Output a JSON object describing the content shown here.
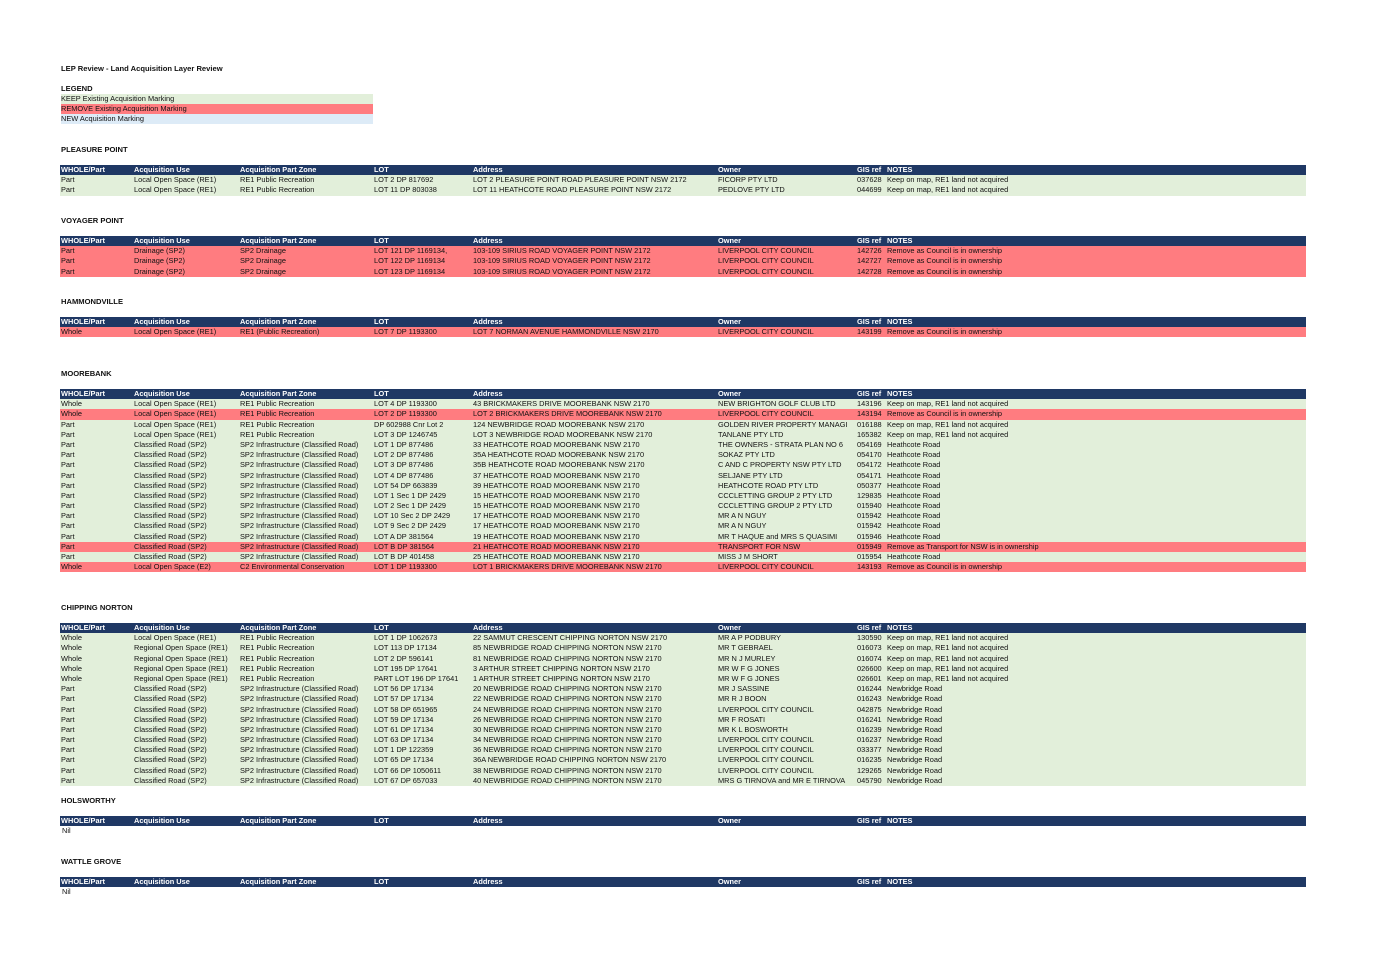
{
  "title": "LEP Review - Land Acquisition Layer Review",
  "legend": {
    "title": "LEGEND",
    "keep": "KEEP Existing Acquisition Marking",
    "remove": "REMOVE Existing Acquisition Marking",
    "new": "NEW Acquisition Marking"
  },
  "colors": {
    "keep": "#e2efda",
    "remove": "#ff7c80",
    "new": "#ddebf7",
    "header": "#1f3864"
  },
  "headers": [
    "WHOLE/Part",
    "Acquisition Use",
    "Acquisition Part Zone",
    "LOT",
    "Address",
    "Owner",
    "GIS ref",
    "NOTES"
  ],
  "sections": [
    {
      "name": "PLEASURE POINT",
      "rows": [
        {
          "status": "keep",
          "cells": [
            "Part",
            "Local Open Space (RE1)",
            "RE1 Public Recreation",
            "LOT 2 DP 817692",
            "LOT 2 PLEASURE POINT ROAD   PLEASURE POINT NSW 2172",
            "FICORP PTY LTD",
            "037628",
            "Keep on map, RE1 land not acquired"
          ]
        },
        {
          "status": "keep",
          "cells": [
            "Part",
            "Local Open Space (RE1)",
            "RE1 Public Recreation",
            "LOT 11 DP 803038",
            "LOT 11 HEATHCOTE ROAD   PLEASURE POINT NSW 2172",
            "PEDLOVE PTY LTD",
            "044699",
            "Keep on map, RE1 land not acquired"
          ]
        }
      ]
    },
    {
      "name": "VOYAGER POINT",
      "rows": [
        {
          "status": "remove",
          "cells": [
            "Part",
            "Drainage (SP2)",
            "SP2 Drainage",
            "LOT 121 DP 1169134,",
            "103-109 SIRIUS ROAD   VOYAGER POINT NSW 2172",
            "LIVERPOOL CITY COUNCIL",
            "142726",
            "Remove as Council is in ownership"
          ]
        },
        {
          "status": "remove",
          "cells": [
            "Part",
            "Drainage (SP2)",
            "SP2 Drainage",
            "LOT 122 DP 1169134",
            "103-109 SIRIUS ROAD   VOYAGER POINT NSW 2172",
            "LIVERPOOL CITY COUNCIL",
            "142727",
            "Remove as Council is in ownership"
          ]
        },
        {
          "status": "remove",
          "cells": [
            "Part",
            "Drainage (SP2)",
            "SP2 Drainage",
            "LOT 123 DP 1169134",
            "103-109 SIRIUS ROAD   VOYAGER POINT NSW 2172",
            "LIVERPOOL CITY COUNCIL",
            "142728",
            "Remove as Council is in ownership"
          ]
        }
      ]
    },
    {
      "name": "HAMMONDVILLE",
      "rows": [
        {
          "status": "remove",
          "cells": [
            "Whole",
            "Local Open Space (RE1)",
            "RE1 (Public Recreation)",
            "LOT 7 DP 1193300",
            "LOT 7 NORMAN AVENUE HAMMONDVILLE NSW 2170",
            "LIVERPOOL CITY COUNCIL",
            "143199",
            "Remove as Council is in ownership"
          ]
        }
      ]
    },
    {
      "name": "MOOREBANK",
      "rows": [
        {
          "status": "keep",
          "cells": [
            "Whole",
            "Local Open Space (RE1)",
            "RE1 Public Recreation",
            "LOT 4 DP 1193300",
            "43 BRICKMAKERS DRIVE   MOOREBANK NSW 2170",
            "NEW BRIGHTON GOLF CLUB LTD",
            "143196",
            "Keep on map, RE1 land not acquired"
          ]
        },
        {
          "status": "remove",
          "cells": [
            "Whole",
            "Local Open Space (RE1)",
            "RE1 Public Recreation",
            "LOT 2 DP 1193300",
            "LOT 2 BRICKMAKERS DRIVE   MOOREBANK NSW 2170",
            "LIVERPOOL CITY COUNCIL",
            "143194",
            "Remove as Council is in ownership"
          ]
        },
        {
          "status": "keep",
          "cells": [
            "Part",
            "Local Open Space (RE1)",
            "RE1 Public Recreation",
            "DP 602988 Cnr Lot 2",
            "124 NEWBRIDGE ROAD   MOOREBANK NSW 2170",
            "GOLDEN RIVER PROPERTY MANAGI",
            "016188",
            "Keep on map, RE1 land not acquired"
          ]
        },
        {
          "status": "keep",
          "cells": [
            "Part",
            "Local Open Space (RE1)",
            "RE1 Public Recreation",
            "LOT 3 DP 1246745",
            "LOT 3 NEWBRIDGE ROAD   MOOREBANK NSW 2170",
            "TANLANE PTY LTD",
            "165382",
            "Keep on map, RE1 land not acquired"
          ]
        },
        {
          "status": "keep",
          "cells": [
            "Part",
            "Classified Road (SP2)",
            "SP2 Infrastructure (Classified Road)",
            "LOT 1 DP 877486",
            "33 HEATHCOTE ROAD   MOOREBANK NSW 2170",
            "THE OWNERS - STRATA PLAN NO 6",
            "054169",
            "Heathcote Road"
          ]
        },
        {
          "status": "keep",
          "cells": [
            "Part",
            "Classified Road (SP2)",
            "SP2 Infrastructure (Classified Road)",
            "LOT 2 DP 877486",
            "35A HEATHCOTE ROAD   MOOREBANK NSW 2170",
            "SOKAZ PTY LTD",
            "054170",
            "Heathcote Road"
          ]
        },
        {
          "status": "keep",
          "cells": [
            "Part",
            "Classified Road (SP2)",
            "SP2 Infrastructure (Classified Road)",
            "LOT 3 DP 877486",
            "35B HEATHCOTE ROAD   MOOREBANK NSW 2170",
            "C AND C PROPERTY NSW PTY LTD",
            "054172",
            "Heathcote Road"
          ]
        },
        {
          "status": "keep",
          "cells": [
            "Part",
            "Classified Road (SP2)",
            "SP2 Infrastructure (Classified Road)",
            "LOT 4 DP 877486",
            "37 HEATHCOTE ROAD   MOOREBANK NSW 2170",
            "SELJANE PTY LTD",
            "054171",
            "Heathcote Road"
          ]
        },
        {
          "status": "keep",
          "cells": [
            "Part",
            "Classified Road (SP2)",
            "SP2 Infrastructure (Classified Road)",
            "LOT 54 DP 663839",
            "39 HEATHCOTE ROAD   MOOREBANK NSW 2170",
            "HEATHCOTE ROAD PTY LTD",
            "050377",
            "Heathcote Road"
          ]
        },
        {
          "status": "keep",
          "cells": [
            "Part",
            "Classified Road (SP2)",
            "SP2 Infrastructure (Classified Road)",
            "LOT 1 Sec 1 DP 2429",
            "15 HEATHCOTE ROAD   MOOREBANK NSW 2170",
            "CCCLETTING GROUP 2 PTY LTD",
            "129835",
            "Heathcote Road"
          ]
        },
        {
          "status": "keep",
          "cells": [
            "Part",
            "Classified Road (SP2)",
            "SP2 Infrastructure (Classified Road)",
            "LOT 2 Sec 1 DP 2429",
            "15 HEATHCOTE ROAD   MOOREBANK NSW 2170",
            "CCCLETTING GROUP 2 PTY LTD",
            "015940",
            "Heathcote Road"
          ]
        },
        {
          "status": "keep",
          "cells": [
            "Part",
            "Classified Road (SP2)",
            "SP2 Infrastructure (Classified Road)",
            "LOT 10 Sec 2 DP 2429",
            "17 HEATHCOTE ROAD   MOOREBANK NSW 2170",
            "MR A N NGUY",
            "015942",
            "Heathcote Road"
          ]
        },
        {
          "status": "keep",
          "cells": [
            "Part",
            "Classified Road (SP2)",
            "SP2 Infrastructure (Classified Road)",
            "LOT 9 Sec 2 DP 2429",
            "17 HEATHCOTE ROAD   MOOREBANK NSW 2170",
            "MR A N NGUY",
            "015942",
            "Heathcote Road"
          ]
        },
        {
          "status": "keep",
          "cells": [
            "Part",
            "Classified Road (SP2)",
            "SP2 Infrastructure (Classified Road)",
            "LOT A DP 381564",
            "19 HEATHCOTE ROAD   MOOREBANK NSW 2170",
            "MR T HAQUE and MRS S QUASIMI",
            "015946",
            "Heathcote Road"
          ]
        },
        {
          "status": "remove",
          "cells": [
            "Part",
            "Classified Road (SP2)",
            "SP2 Infrastructure (Classified Road)",
            "LOT B DP 381564",
            "21 HEATHCOTE ROAD   MOOREBANK NSW 2170",
            "TRANSPORT FOR NSW",
            "015949",
            "Remove as Transport for NSW is in ownership"
          ]
        },
        {
          "status": "keep",
          "cells": [
            "Part",
            "Classified Road (SP2)",
            "SP2 Infrastructure (Classified Road)",
            "LOT B DP 401458",
            "25 HEATHCOTE ROAD   MOOREBANK NSW 2170",
            "MISS J M SHORT",
            "015954",
            "Heathcote Road"
          ]
        },
        {
          "status": "remove",
          "cells": [
            "Whole",
            "Local Open Space (E2)",
            "C2 Environmental Conservation",
            "LOT 1 DP 1193300",
            "LOT 1 BRICKMAKERS DRIVE   MOOREBANK NSW 2170",
            "LIVERPOOL CITY COUNCIL",
            "143193",
            "Remove as Council is in ownership"
          ]
        }
      ]
    },
    {
      "name": "CHIPPING NORTON",
      "rows": [
        {
          "status": "keep",
          "cells": [
            "Whole",
            "Local Open Space (RE1)",
            "RE1 Public Recreation",
            "LOT 1 DP 1062673",
            "22 SAMMUT CRESCENT   CHIPPING NORTON NSW 2170",
            "MR A P PODBURY",
            "130590",
            "Keep on map, RE1 land not acquired"
          ]
        },
        {
          "status": "keep",
          "cells": [
            "Whole",
            "Regional Open Space (RE1)",
            "RE1 Public Recreation",
            "LOT 113 DP 17134",
            "85 NEWBRIDGE ROAD   CHIPPING NORTON NSW 2170",
            "MR T GEBRAEL",
            "016073",
            "Keep on map, RE1 land not acquired"
          ]
        },
        {
          "status": "keep",
          "cells": [
            "Whole",
            "Regional Open Space (RE1)",
            "RE1 Public Recreation",
            "LOT 2 DP 596141",
            "81 NEWBRIDGE ROAD   CHIPPING NORTON NSW 2170",
            "MR N J MURLEY",
            "016074",
            "Keep on map, RE1 land not acquired"
          ]
        },
        {
          "status": "keep",
          "cells": [
            "Whole",
            "Regional Open Space (RE1)",
            "RE1 Public Recreation",
            "LOT 195 DP 17641",
            "3 ARTHUR STREET   CHIPPING NORTON NSW 2170",
            "MR W F G JONES",
            "026600",
            "Keep on map, RE1 land not acquired"
          ]
        },
        {
          "status": "keep",
          "cells": [
            "Whole",
            "Regional Open Space (RE1)",
            "RE1 Public Recreation",
            "PART LOT 196 DP 17641",
            "1 ARTHUR STREET   CHIPPING NORTON NSW 2170",
            "MR W F G JONES",
            "026601",
            "Keep on map, RE1 land not acquired"
          ]
        },
        {
          "status": "keep",
          "cells": [
            "Part",
            "Classified Road (SP2)",
            "SP2 Infrastructure (Classified Road)",
            "LOT 56 DP 17134",
            "20 NEWBRIDGE ROAD   CHIPPING NORTON NSW 2170",
            "MR J SASSINE",
            "016244",
            "Newbridge Road"
          ]
        },
        {
          "status": "keep",
          "cells": [
            "Part",
            "Classified Road (SP2)",
            "SP2 Infrastructure (Classified Road)",
            "LOT 57 DP 17134",
            "22 NEWBRIDGE ROAD   CHIPPING NORTON NSW 2170",
            "MR R J BOON",
            "016243",
            "Newbridge Road"
          ]
        },
        {
          "status": "keep",
          "cells": [
            "Part",
            "Classified Road (SP2)",
            "SP2 Infrastructure (Classified Road)",
            "LOT 58 DP 651965",
            "24 NEWBRIDGE ROAD   CHIPPING NORTON NSW 2170",
            "LIVERPOOL CITY COUNCIL",
            "042875",
            "Newbridge Road"
          ]
        },
        {
          "status": "keep",
          "cells": [
            "Part",
            "Classified Road (SP2)",
            "SP2 Infrastructure (Classified Road)",
            "LOT 59 DP 17134",
            "26 NEWBRIDGE ROAD   CHIPPING NORTON NSW 2170",
            "MR F ROSATI",
            "016241",
            "Newbridge Road"
          ]
        },
        {
          "status": "keep",
          "cells": [
            "Part",
            "Classified Road (SP2)",
            "SP2 Infrastructure (Classified Road)",
            "LOT 61 DP 17134",
            "30 NEWBRIDGE ROAD   CHIPPING NORTON NSW 2170",
            "MR K L BOSWORTH",
            "016239",
            "Newbridge Road"
          ]
        },
        {
          "status": "keep",
          "cells": [
            "Part",
            "Classified Road (SP2)",
            "SP2 Infrastructure (Classified Road)",
            "LOT 63 DP 17134",
            "34 NEWBRIDGE ROAD   CHIPPING NORTON NSW 2170",
            "LIVERPOOL CITY COUNCIL",
            "016237",
            "Newbridge Road"
          ]
        },
        {
          "status": "keep",
          "cells": [
            "Part",
            "Classified Road (SP2)",
            "SP2 Infrastructure (Classified Road)",
            "LOT 1 DP 122359",
            "36 NEWBRIDGE ROAD   CHIPPING NORTON NSW 2170",
            "LIVERPOOL CITY COUNCIL",
            "033377",
            "Newbridge Road"
          ]
        },
        {
          "status": "keep",
          "cells": [
            "Part",
            "Classified Road (SP2)",
            "SP2 Infrastructure (Classified Road)",
            "LOT 65 DP 17134",
            "36A NEWBRIDGE ROAD   CHIPPING NORTON NSW 2170",
            "LIVERPOOL CITY COUNCIL",
            "016235",
            "Newbridge Road"
          ]
        },
        {
          "status": "keep",
          "cells": [
            "Part",
            "Classified Road (SP2)",
            "SP2 Infrastructure (Classified Road)",
            "LOT 66 DP 1050611",
            "38 NEWBRIDGE ROAD   CHIPPING NORTON NSW 2170",
            "LIVERPOOL CITY COUNCIL",
            "129265",
            "Newbridge Road"
          ]
        },
        {
          "status": "keep",
          "cells": [
            "Part",
            "Classified Road (SP2)",
            "SP2 Infrastructure (Classified Road)",
            "LOT 67 DP 657033",
            "40 NEWBRIDGE ROAD   CHIPPING NORTON NSW 2170",
            "MRS G TIRNOVA and MR E TIRNOVA",
            "045790",
            "Newbridge Road"
          ]
        }
      ]
    },
    {
      "name": "HOLSWORTHY",
      "rows": [],
      "nil": "Nil"
    },
    {
      "name": "WATTLE GROVE",
      "rows": [],
      "nil": "Nil"
    }
  ]
}
